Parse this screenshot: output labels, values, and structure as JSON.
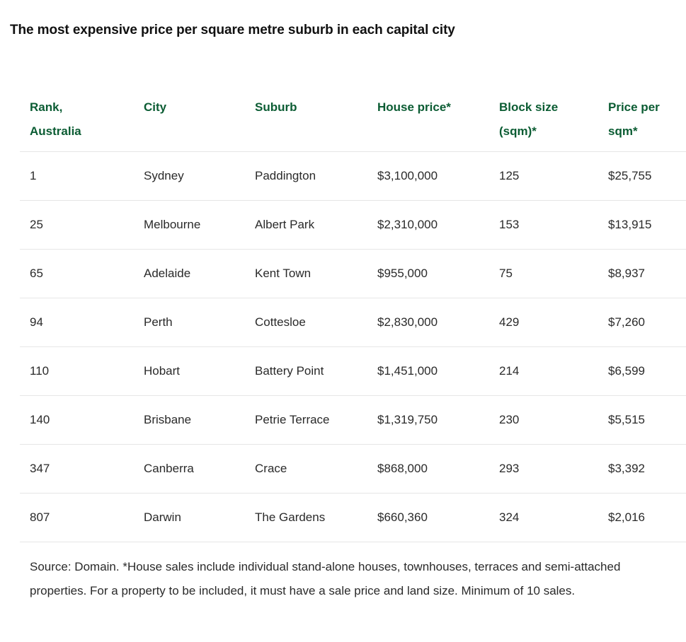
{
  "title": "The most expensive price per square metre suburb in each capital city",
  "table": {
    "headers": [
      {
        "line1": "Rank,",
        "line2": "Australia"
      },
      {
        "line1": "City",
        "line2": ""
      },
      {
        "line1": "Suburb",
        "line2": ""
      },
      {
        "line1": "House price*",
        "line2": ""
      },
      {
        "line1": "Block size",
        "line2": "(sqm)*"
      },
      {
        "line1": "Price per",
        "line2": "sqm*"
      }
    ],
    "rows": [
      [
        "1",
        "Sydney",
        "Paddington",
        "$3,100,000",
        "125",
        "$25,755"
      ],
      [
        "25",
        "Melbourne",
        "Albert Park",
        "$2,310,000",
        "153",
        "$13,915"
      ],
      [
        "65",
        "Adelaide",
        "Kent Town",
        "$955,000",
        "75",
        "$8,937"
      ],
      [
        "94",
        "Perth",
        "Cottesloe",
        "$2,830,000",
        "429",
        "$7,260"
      ],
      [
        "110",
        "Hobart",
        "Battery Point",
        "$1,451,000",
        "214",
        "$6,599"
      ],
      [
        "140",
        "Brisbane",
        "Petrie Terrace",
        "$1,319,750",
        "230",
        "$5,515"
      ],
      [
        "347",
        "Canberra",
        "Crace",
        "$868,000",
        "293",
        "$3,392"
      ],
      [
        "807",
        "Darwin",
        "The Gardens",
        "$660,360",
        "324",
        "$2,016"
      ]
    ]
  },
  "footnote": "Source: Domain. *House sales include individual stand-alone houses, townhouses, terraces and semi-attached properties. For a property to be included, it must have a sale price and land size. Minimum of 10 sales.",
  "colors": {
    "header_text": "#0b5c33",
    "body_text": "#2a2a2a",
    "row_divider": "#e6e6e6"
  }
}
